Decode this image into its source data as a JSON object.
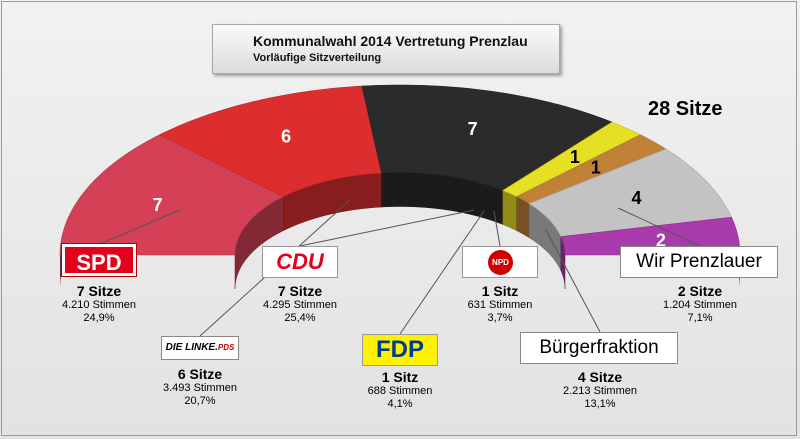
{
  "header": {
    "title": "Kommunalwahl 2014 Vertretung Prenzlau",
    "subtitle": "Vorläufige Sitzverteilung",
    "total_seats": "28 Sitze"
  },
  "chart_data": {
    "type": "pie",
    "variant": "semicircle-parliament",
    "title": "Kommunalwahl 2014 Vertretung Prenzlau",
    "subtitle": "Vorläufige Sitzverteilung",
    "total": 28,
    "total_label": "28 Sitze",
    "series": [
      {
        "party": "SPD",
        "seats": 7,
        "seats_label": "7 Sitze",
        "votes": "4.210 Stimmen",
        "percent": "24,9%",
        "color": "#d44055"
      },
      {
        "party": "DIE LINKE.PDS",
        "seats": 6,
        "seats_label": "6 Sitze",
        "votes": "3.493 Stimmen",
        "percent": "20,7%",
        "color": "#dc2e2e"
      },
      {
        "party": "CDU",
        "seats": 7,
        "seats_label": "7 Sitze",
        "votes": "4.295 Stimmen",
        "percent": "25,4%",
        "color": "#2b2b2b"
      },
      {
        "party": "FDP",
        "seats": 1,
        "seats_label": "1 Sitz",
        "votes": "688 Stimmen",
        "percent": "4,1%",
        "color": "#e6e024"
      },
      {
        "party": "NPD",
        "seats": 1,
        "seats_label": "1 Sitz",
        "votes": "631 Stimmen",
        "percent": "3,7%",
        "color": "#c08236"
      },
      {
        "party": "Bürgerfraktion",
        "seats": 4,
        "seats_label": "4 Sitze",
        "votes": "2.213 Stimmen",
        "percent": "13,1%",
        "color": "#c3c3c3"
      },
      {
        "party": "Wir Prenzlauer",
        "seats": 2,
        "seats_label": "2 Sitze",
        "votes": "1.204 Stimmen",
        "percent": "7,1%",
        "color": "#a83aac"
      }
    ]
  },
  "logos": {
    "spd": "SPD",
    "linke_main": "DIE LINKE.",
    "linke_suffix": "PDS",
    "cdu": "CDU",
    "fdp": "FDP",
    "npd": "NPD",
    "buergerfraktion": "Bürgerfraktion",
    "wir_prenzlauer": "Wir Prenzlauer"
  }
}
